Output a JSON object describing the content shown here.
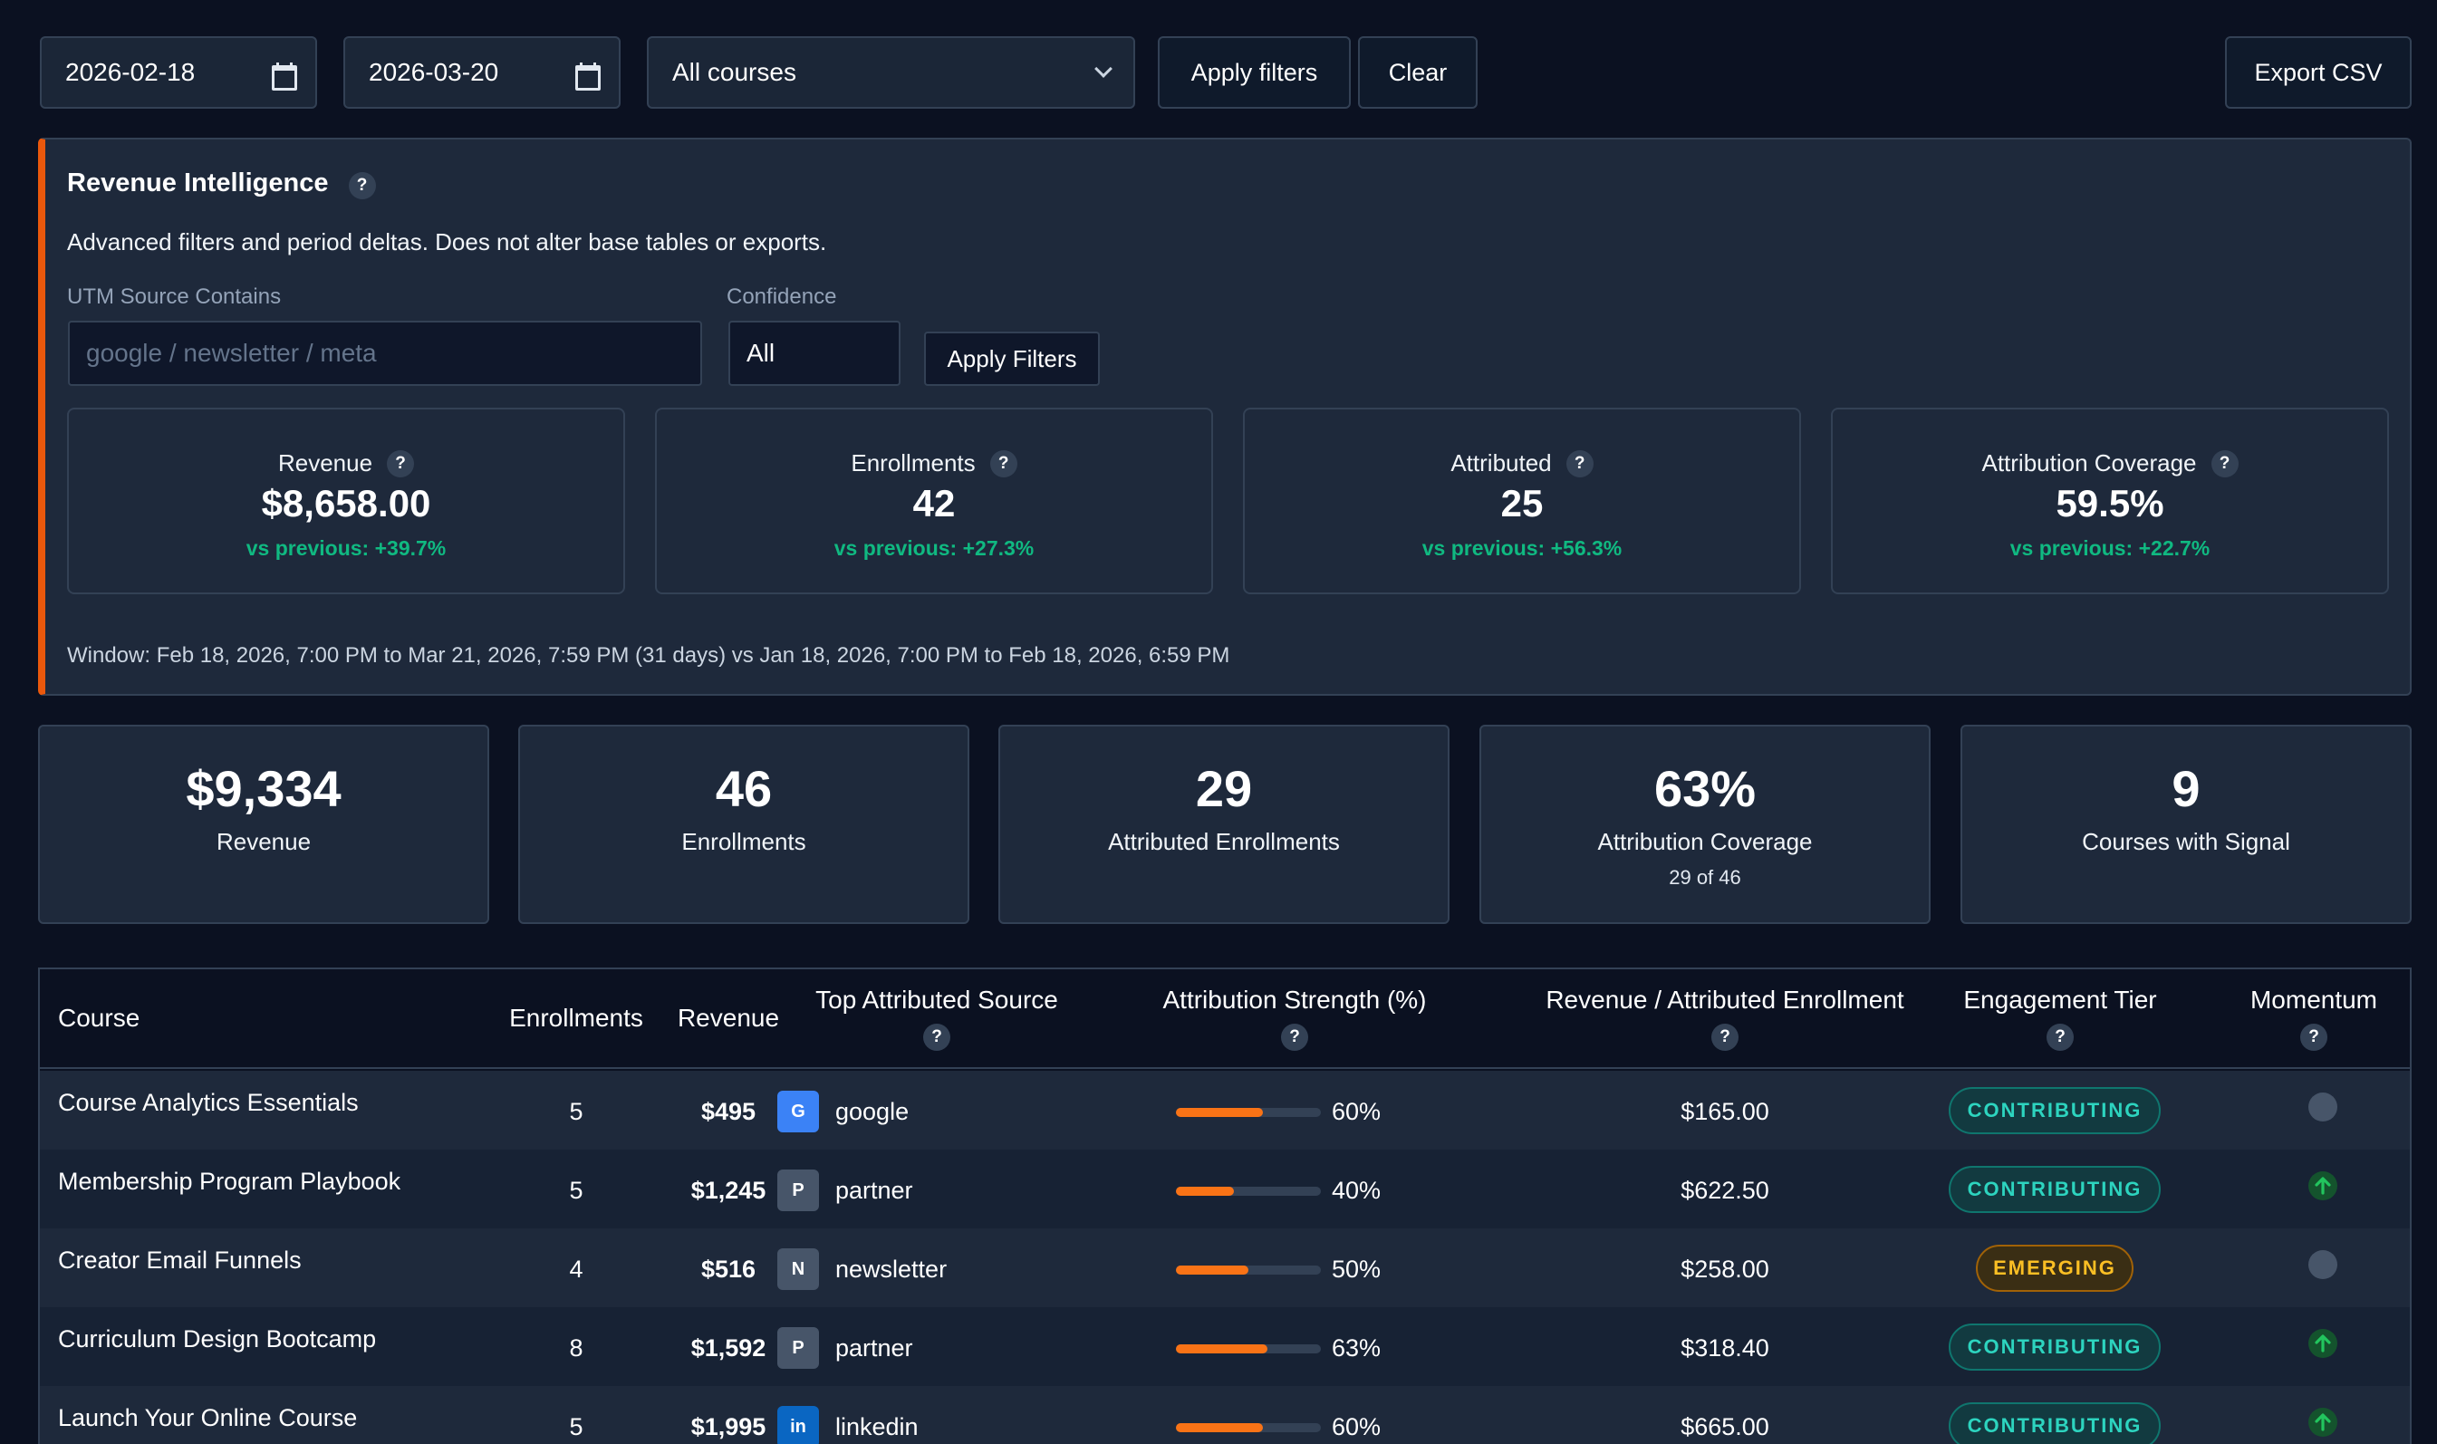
{
  "filters": {
    "start_date": "2026-02-18",
    "end_date": "2026-03-20",
    "course_select": "All courses",
    "apply_label": "Apply filters",
    "clear_label": "Clear",
    "export_label": "Export CSV"
  },
  "revenue_intelligence": {
    "title": "Revenue Intelligence",
    "description": "Advanced filters and period deltas. Does not alter base tables or exports.",
    "utm_label": "UTM Source Contains",
    "utm_placeholder": "google / newsletter / meta",
    "confidence_label": "Confidence",
    "confidence_value": "All",
    "apply_label": "Apply Filters",
    "cards": [
      {
        "label": "Revenue",
        "value": "$8,658.00",
        "delta": "vs previous: +39.7%"
      },
      {
        "label": "Enrollments",
        "value": "42",
        "delta": "vs previous: +27.3%"
      },
      {
        "label": "Attributed",
        "value": "25",
        "delta": "vs previous: +56.3%"
      },
      {
        "label": "Attribution Coverage",
        "value": "59.5%",
        "delta": "vs previous: +22.7%"
      }
    ],
    "window_text": "Window: Feb 18, 2026, 7:00 PM to Mar 21, 2026, 7:59 PM (31 days) vs Jan 18, 2026, 7:00 PM to Feb 18, 2026, 6:59 PM"
  },
  "stats": [
    {
      "value": "$9,334",
      "label": "Revenue",
      "sub": ""
    },
    {
      "value": "46",
      "label": "Enrollments",
      "sub": ""
    },
    {
      "value": "29",
      "label": "Attributed Enrollments",
      "sub": ""
    },
    {
      "value": "63%",
      "label": "Attribution Coverage",
      "sub": "29 of 46"
    },
    {
      "value": "9",
      "label": "Courses with Signal",
      "sub": ""
    }
  ],
  "table": {
    "headers": {
      "course": "Course",
      "enrollments": "Enrollments",
      "revenue": "Revenue",
      "top_source": "Top Attributed Source",
      "strength": "Attribution Strength (%)",
      "rev_per": "Revenue / Attributed Enrollment",
      "tier": "Engagement Tier",
      "momentum": "Momentum"
    },
    "help_glyph": "?",
    "rows": [
      {
        "course": "Course Analytics Essentials",
        "enrollments": "5",
        "revenue": "$495",
        "source_badge": "G",
        "source_color": "#3b82f6",
        "source": "google",
        "strength_pct": 60,
        "strength": "60%",
        "rev_per": "$165.00",
        "tier": "CONTRIBUTING",
        "momentum": "neutral"
      },
      {
        "course": "Membership Program Playbook",
        "enrollments": "5",
        "revenue": "$1,245",
        "source_badge": "P",
        "source_color": "#475569",
        "source": "partner",
        "strength_pct": 40,
        "strength": "40%",
        "rev_per": "$622.50",
        "tier": "CONTRIBUTING",
        "momentum": "up"
      },
      {
        "course": "Creator Email Funnels",
        "enrollments": "4",
        "revenue": "$516",
        "source_badge": "N",
        "source_color": "#475569",
        "source": "newsletter",
        "strength_pct": 50,
        "strength": "50%",
        "rev_per": "$258.00",
        "tier": "EMERGING",
        "momentum": "neutral"
      },
      {
        "course": "Curriculum Design Bootcamp",
        "enrollments": "8",
        "revenue": "$1,592",
        "source_badge": "P",
        "source_color": "#475569",
        "source": "partner",
        "strength_pct": 63,
        "strength": "63%",
        "rev_per": "$318.40",
        "tier": "CONTRIBUTING",
        "momentum": "up"
      },
      {
        "course": "Launch Your Online Course",
        "enrollments": "5",
        "revenue": "$1,995",
        "source_badge": "in",
        "source_color": "#0a66c2",
        "source": "linkedin",
        "strength_pct": 60,
        "strength": "60%",
        "rev_per": "$665.00",
        "tier": "CONTRIBUTING",
        "momentum": "up"
      }
    ]
  },
  "colors": {
    "background": "#0b1121",
    "panel": "#1e293b",
    "accent_orange": "#ea580c",
    "positive_green": "#10b981",
    "teal_tier": "#2dd4bf",
    "amber_tier": "#fbbf24"
  }
}
